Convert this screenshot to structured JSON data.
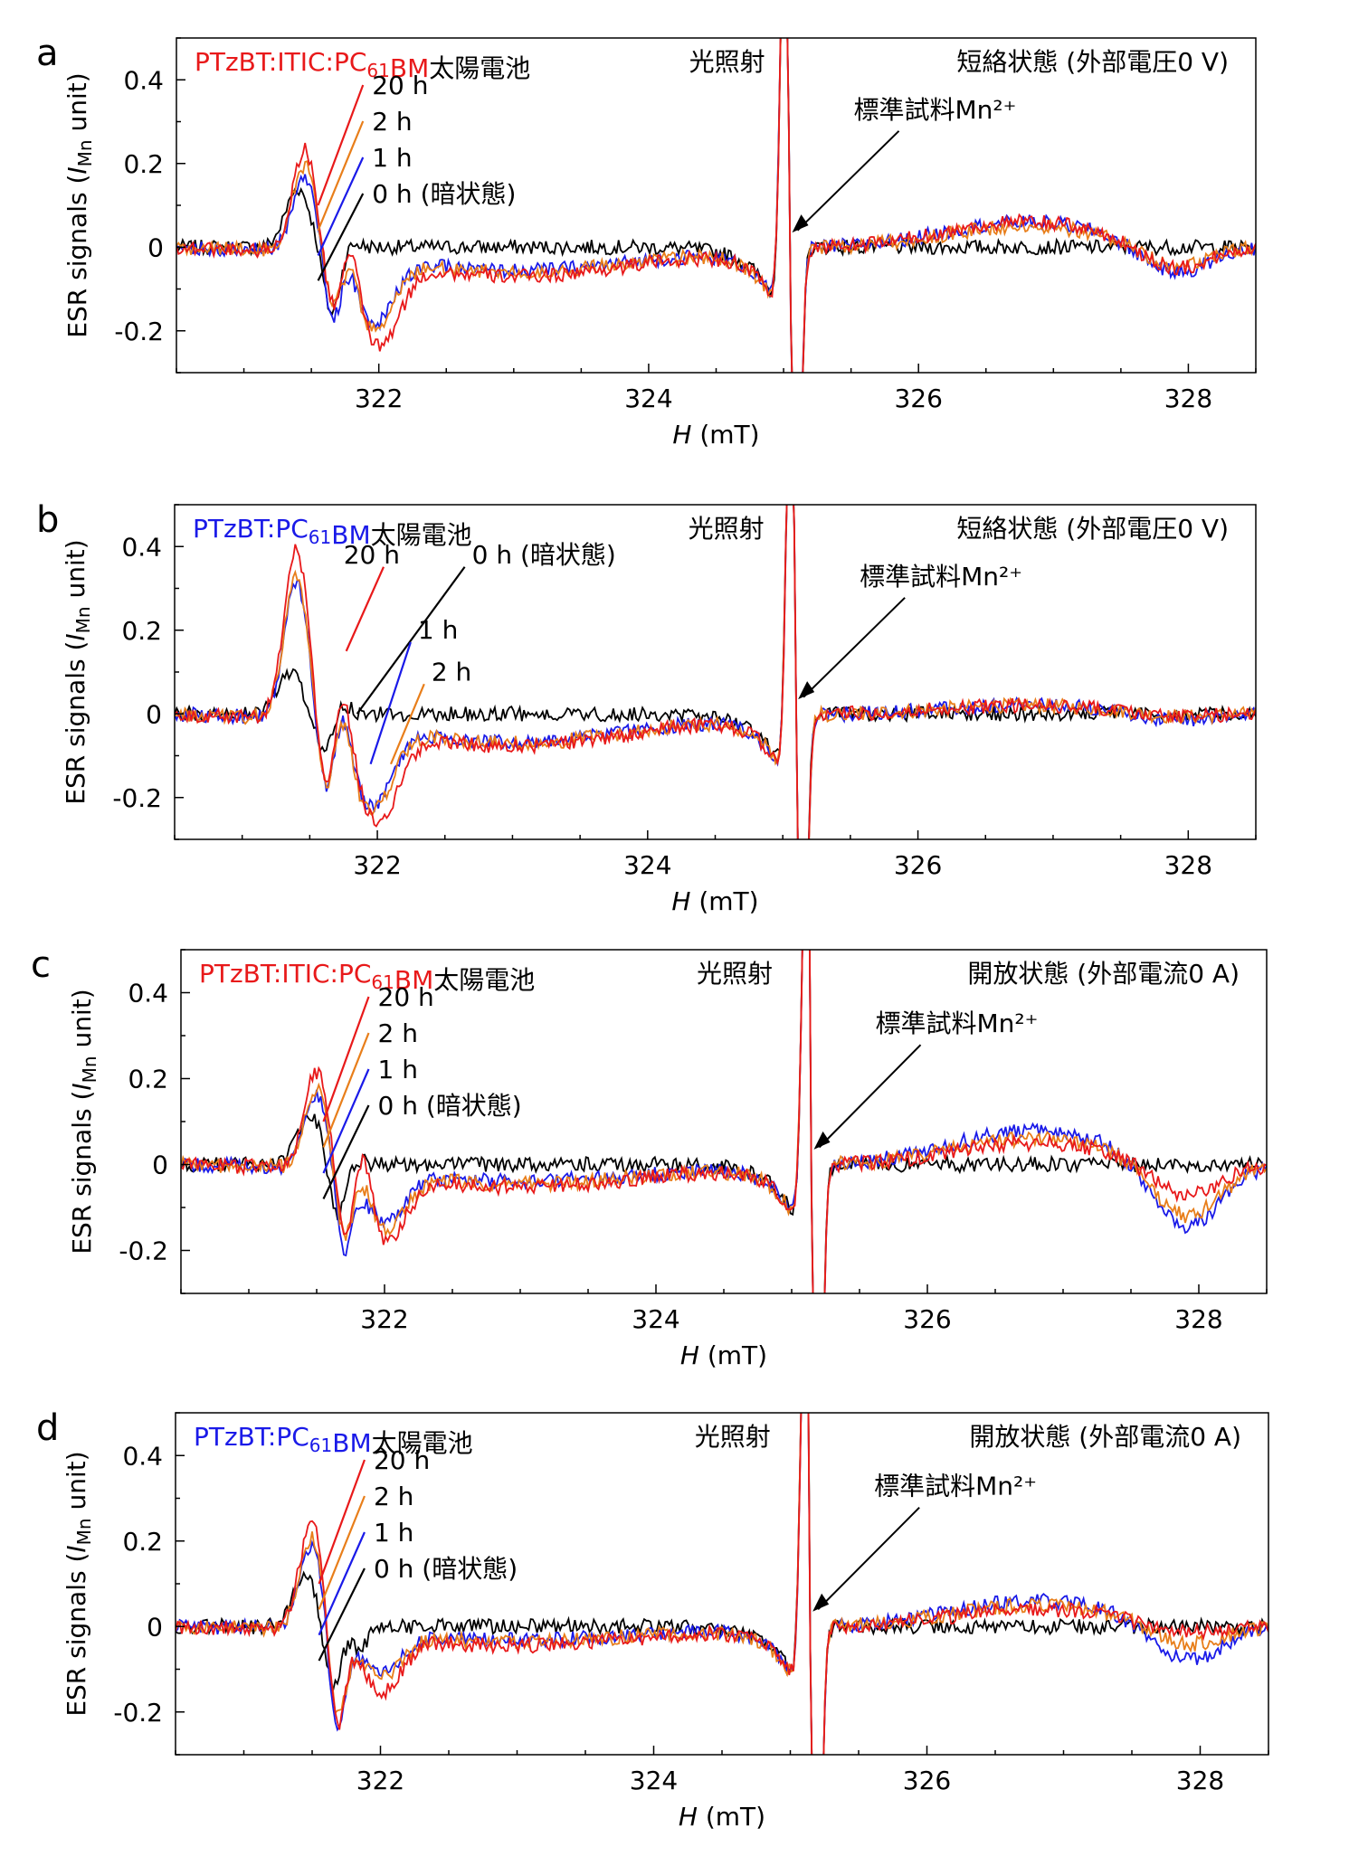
{
  "chart_data": [
    {
      "type": "line",
      "panel": "a",
      "title_parts": [
        {
          "text": "PTzBT:ITIC:PC",
          "color": "red"
        },
        {
          "text": "61",
          "color": "red",
          "sub": true
        },
        {
          "text": "BM",
          "color": "red"
        },
        {
          "text": "太陽電池",
          "color": "black"
        }
      ],
      "condition_light": "光照射",
      "condition_state": "短絡状態 (外部電圧0 V)",
      "xlabel": "H (mT)",
      "ylabel": "ESR signals (I_Mn unit)",
      "xlim": [
        320.5,
        328.5
      ],
      "ylim": [
        -0.3,
        0.5
      ],
      "xticks": [
        "322",
        "324",
        "326",
        "328"
      ],
      "yticks": [
        "-0.2",
        "0",
        "0.2",
        "0.4"
      ],
      "ref_label": "標準試料Mn²⁺",
      "legend_order": [
        "20 h",
        "2 h",
        "1 h",
        "0 h (暗状態)"
      ],
      "series": [
        {
          "name": "20 h",
          "color": "#e8191a",
          "peak": 0.25,
          "dip1": -0.12,
          "bump": 0.09,
          "dip2": -0.2,
          "broad": 0.06,
          "broad_dip": -0.06,
          "x_peak": 321.45,
          "x_dip1": 321.65,
          "x_bump": 321.8,
          "x_dip2": 322.0
        },
        {
          "name": "2 h",
          "color": "#e87e1a",
          "peak": 0.21,
          "dip1": -0.11,
          "bump": 0.07,
          "dip2": -0.17,
          "broad": 0.05,
          "broad_dip": -0.05,
          "x_peak": 321.45,
          "x_dip1": 321.65,
          "x_bump": 321.8,
          "x_dip2": 321.95
        },
        {
          "name": "1 h",
          "color": "#1a1ae8",
          "peak": 0.18,
          "dip1": -0.14,
          "bump": 0.05,
          "dip2": -0.16,
          "broad": 0.06,
          "broad_dip": -0.07,
          "x_peak": 321.45,
          "x_dip1": 321.65,
          "x_bump": 321.8,
          "x_dip2": 321.95
        },
        {
          "name": "0 h (暗状態)",
          "color": "#000000",
          "peak": 0.14,
          "dip1": -0.16,
          "bump": 0.01,
          "dip2": 0.0,
          "broad": 0.0,
          "broad_dip": 0.0,
          "x_peak": 321.4,
          "x_dip1": 321.65,
          "x_bump": 321.8,
          "x_dip2": 322.0
        }
      ],
      "mn_peak_x": 325.05
    },
    {
      "type": "line",
      "panel": "b",
      "title_parts": [
        {
          "text": "PTzBT:PC",
          "color": "blue"
        },
        {
          "text": "61",
          "color": "blue",
          "sub": true
        },
        {
          "text": "BM",
          "color": "blue"
        },
        {
          "text": "太陽電池",
          "color": "black"
        }
      ],
      "condition_light": "光照射",
      "condition_state": "短絡状態 (外部電圧0 V)",
      "xlabel": "H (mT)",
      "ylabel": "ESR signals (I_Mn unit)",
      "xlim": [
        320.5,
        328.5
      ],
      "ylim": [
        -0.3,
        0.5
      ],
      "xticks": [
        "322",
        "324",
        "326",
        "328"
      ],
      "yticks": [
        "-0.2",
        "0",
        "0.2",
        "0.4"
      ],
      "ref_label": "標準試料Mn²⁺",
      "legend_order": [
        "20 h",
        "0 h (暗状態)",
        "1 h",
        "2 h"
      ],
      "series": [
        {
          "name": "20 h",
          "color": "#e8191a",
          "peak": 0.41,
          "dip1": -0.17,
          "bump": 0.13,
          "dip2": -0.22,
          "broad": 0.02,
          "broad_dip": -0.01,
          "x_peak": 321.4,
          "x_dip1": 321.62,
          "x_bump": 321.75,
          "x_dip2": 322.0
        },
        {
          "name": "2 h",
          "color": "#e87e1a",
          "peak": 0.34,
          "dip1": -0.15,
          "bump": 0.1,
          "dip2": -0.2,
          "broad": 0.02,
          "broad_dip": -0.01,
          "x_peak": 321.4,
          "x_dip1": 321.62,
          "x_bump": 321.75,
          "x_dip2": 321.95
        },
        {
          "name": "1 h",
          "color": "#1a1ae8",
          "peak": 0.33,
          "dip1": -0.16,
          "bump": 0.1,
          "dip2": -0.19,
          "broad": 0.02,
          "broad_dip": -0.02,
          "x_peak": 321.4,
          "x_dip1": 321.62,
          "x_bump": 321.75,
          "x_dip2": 321.95
        },
        {
          "name": "0 h (暗状態)",
          "color": "#000000",
          "peak": 0.1,
          "dip1": -0.08,
          "bump": 0.02,
          "dip2": 0.0,
          "broad": 0.0,
          "broad_dip": 0.0,
          "x_peak": 321.35,
          "x_dip1": 321.6,
          "x_bump": 321.75,
          "x_dip2": 322.0
        }
      ],
      "mn_peak_x": 325.1
    },
    {
      "type": "line",
      "panel": "c",
      "title_parts": [
        {
          "text": "PTzBT:ITIC:PC",
          "color": "red"
        },
        {
          "text": "61",
          "color": "red",
          "sub": true
        },
        {
          "text": "BM",
          "color": "red"
        },
        {
          "text": "太陽電池",
          "color": "black"
        }
      ],
      "condition_light": "光照射",
      "condition_state": "開放状態 (外部電流0 A)",
      "xlabel": "H (mT)",
      "ylabel": "ESR signals (I_Mn unit)",
      "xlim": [
        320.5,
        328.5
      ],
      "ylim": [
        -0.3,
        0.5
      ],
      "xticks": [
        "322",
        "324",
        "326",
        "328"
      ],
      "yticks": [
        "-0.2",
        "0",
        "0.2",
        "0.4"
      ],
      "ref_label": "標準試料Mn²⁺",
      "legend_order": [
        "20 h",
        "2 h",
        "1 h",
        "0 h (暗状態)"
      ],
      "series": [
        {
          "name": "20 h",
          "color": "#e8191a",
          "peak": 0.23,
          "dip1": -0.14,
          "bump": 0.13,
          "dip2": -0.15,
          "broad": 0.05,
          "broad_dip": -0.08,
          "x_peak": 321.5,
          "x_dip1": 321.7,
          "x_bump": 321.85,
          "x_dip2": 322.0
        },
        {
          "name": "2 h",
          "color": "#e87e1a",
          "peak": 0.19,
          "dip1": -0.15,
          "bump": 0.05,
          "dip2": -0.13,
          "broad": 0.06,
          "broad_dip": -0.13,
          "x_peak": 321.5,
          "x_dip1": 321.7,
          "x_bump": 321.85,
          "x_dip2": 322.0
        },
        {
          "name": "1 h",
          "color": "#1a1ae8",
          "peak": 0.17,
          "dip1": -0.18,
          "bump": 0.0,
          "dip2": -0.11,
          "broad": 0.08,
          "broad_dip": -0.16,
          "x_peak": 321.5,
          "x_dip1": 321.7,
          "x_bump": 321.85,
          "x_dip2": 322.0
        },
        {
          "name": "0 h (暗状態)",
          "color": "#000000",
          "peak": 0.12,
          "dip1": -0.13,
          "bump": 0.01,
          "dip2": 0.0,
          "broad": 0.0,
          "broad_dip": 0.0,
          "x_peak": 321.45,
          "x_dip1": 321.65,
          "x_bump": 321.8,
          "x_dip2": 322.0
        }
      ],
      "mn_peak_x": 325.15
    },
    {
      "type": "line",
      "panel": "d",
      "title_parts": [
        {
          "text": "PTzBT:PC",
          "color": "blue"
        },
        {
          "text": "61",
          "color": "blue",
          "sub": true
        },
        {
          "text": "BM",
          "color": "blue"
        },
        {
          "text": "太陽電池",
          "color": "black"
        }
      ],
      "condition_light": "光照射",
      "condition_state": "開放状態 (外部電流0 A)",
      "xlabel": "H (mT)",
      "ylabel": "ESR signals (I_Mn unit)",
      "xlim": [
        320.5,
        328.5
      ],
      "ylim": [
        -0.3,
        0.5
      ],
      "xticks": [
        "322",
        "324",
        "326",
        "328"
      ],
      "yticks": [
        "-0.2",
        "0",
        "0.2",
        "0.4"
      ],
      "ref_label": "標準試料Mn²⁺",
      "legend_order": [
        "20 h",
        "2 h",
        "1 h",
        "0 h (暗状態)"
      ],
      "series": [
        {
          "name": "20 h",
          "color": "#e8191a",
          "peak": 0.26,
          "dip1": -0.23,
          "bump": 0.02,
          "dip2": -0.13,
          "broad": 0.04,
          "broad_dip": -0.02,
          "x_peak": 321.5,
          "x_dip1": 321.68,
          "x_bump": 321.82,
          "x_dip2": 322.0
        },
        {
          "name": "2 h",
          "color": "#e87e1a",
          "peak": 0.22,
          "dip1": -0.21,
          "bump": 0.0,
          "dip2": -0.1,
          "broad": 0.05,
          "broad_dip": -0.05,
          "x_peak": 321.5,
          "x_dip1": 321.68,
          "x_bump": 321.82,
          "x_dip2": 322.0
        },
        {
          "name": "1 h",
          "color": "#1a1ae8",
          "peak": 0.2,
          "dip1": -0.25,
          "bump": 0.0,
          "dip2": -0.09,
          "broad": 0.06,
          "broad_dip": -0.09,
          "x_peak": 321.5,
          "x_dip1": 321.68,
          "x_bump": 321.82,
          "x_dip2": 322.0
        },
        {
          "name": "0 h (暗状態)",
          "color": "#000000",
          "peak": 0.12,
          "dip1": -0.15,
          "bump": -0.05,
          "dip2": 0.0,
          "broad": 0.0,
          "broad_dip": 0.0,
          "x_peak": 321.45,
          "x_dip1": 321.65,
          "x_bump": 321.85,
          "x_dip2": 322.0
        }
      ],
      "mn_peak_x": 325.15
    }
  ]
}
